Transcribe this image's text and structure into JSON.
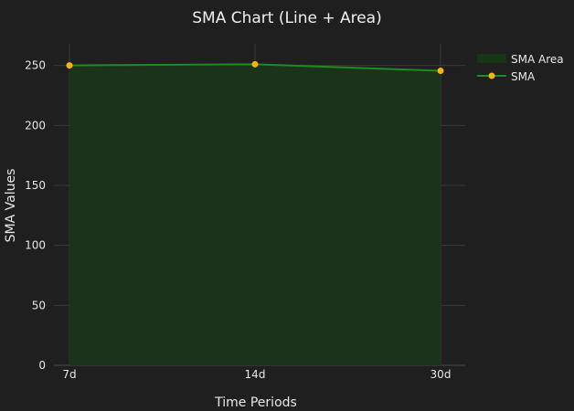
{
  "chart_data": {
    "type": "area",
    "title": "SMA Chart (Line + Area)",
    "xlabel": "Time Periods",
    "ylabel": "SMA Values",
    "categories": [
      "7d",
      "14d",
      "30d"
    ],
    "series": [
      {
        "name": "SMA Area",
        "kind": "area",
        "values": [
          250,
          251,
          245.5
        ]
      },
      {
        "name": "SMA",
        "kind": "line+markers",
        "values": [
          250,
          251,
          245.5
        ]
      }
    ],
    "ylim": [
      0,
      268
    ],
    "yticks": [
      0,
      50,
      100,
      150,
      200,
      250
    ],
    "grid": true,
    "legend_position": "top-right",
    "colors": {
      "background": "#1f1f1f",
      "grid": "#3a3a3a",
      "area_fill": "#1b331b",
      "line": "#1f8c1f",
      "marker": "#f5b21b",
      "legend_area_swatch": "#173517"
    }
  }
}
